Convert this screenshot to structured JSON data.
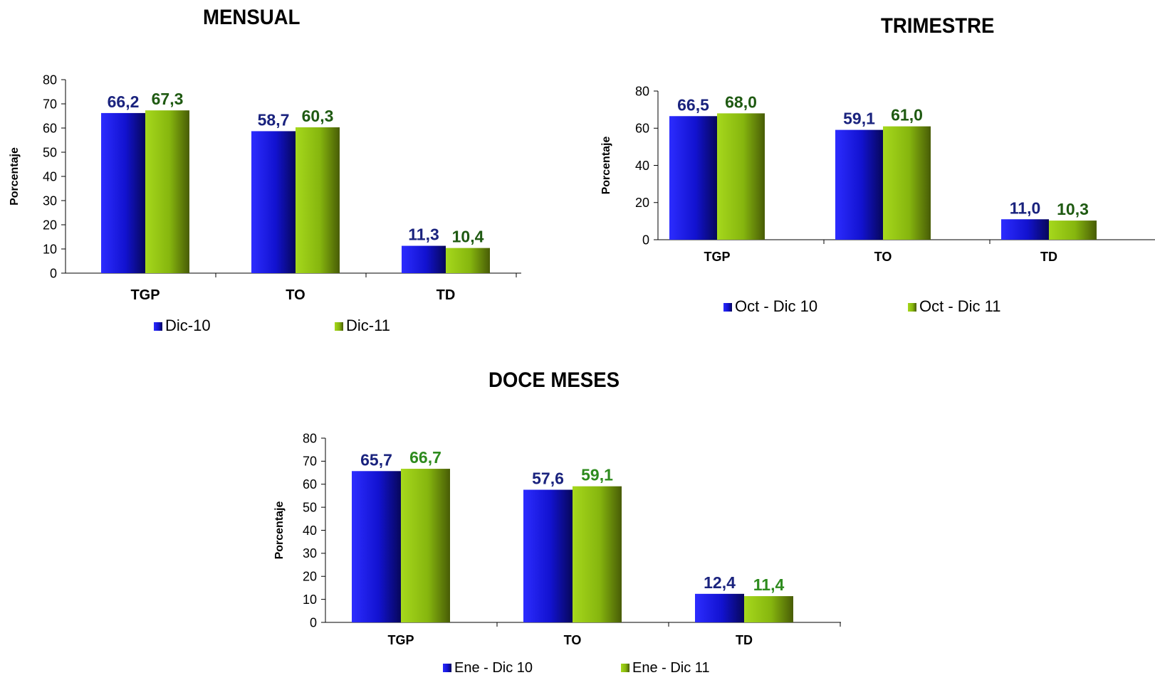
{
  "chart_data": [
    {
      "type": "bar",
      "title": "MENSUAL",
      "ylabel": "Porcentaje",
      "xlabel": "",
      "ylim": [
        0,
        80
      ],
      "yticks": [
        "0",
        "10",
        "20",
        "30",
        "40",
        "50",
        "60",
        "70",
        "80"
      ],
      "categories": [
        "TGP",
        "TO",
        "TD"
      ],
      "series": [
        {
          "name": "Dic-10",
          "values": [
            66.2,
            58.7,
            11.3
          ],
          "labels": [
            "66,2",
            "58,7",
            "11,3"
          ],
          "color": "#1515d6",
          "label_color": "#1a237e"
        },
        {
          "name": "Dic-11",
          "values": [
            67.3,
            60.3,
            10.4
          ],
          "labels": [
            "67,3",
            "60,3",
            "10,4"
          ],
          "color": "#8cbb0f",
          "label_color": "#1f5a12"
        }
      ],
      "legend": "bottom",
      "grid": false
    },
    {
      "type": "bar",
      "title": "TRIMESTRE",
      "ylabel": "Porcentaje",
      "xlabel": "",
      "ylim": [
        0,
        80
      ],
      "yticks": [
        "0",
        "20",
        "40",
        "60",
        "80"
      ],
      "categories": [
        "TGP",
        "TO",
        "TD"
      ],
      "series": [
        {
          "name": "Oct - Dic 10",
          "values": [
            66.5,
            59.1,
            11.0
          ],
          "labels": [
            "66,5",
            "59,1",
            "11,0"
          ],
          "color": "#1515d6",
          "label_color": "#1a237e"
        },
        {
          "name": "Oct - Dic 11",
          "values": [
            68.0,
            61.0,
            10.3
          ],
          "labels": [
            "68,0",
            "61,0",
            "10,3"
          ],
          "color": "#8cbb0f",
          "label_color": "#1f5a12"
        }
      ],
      "legend": "bottom",
      "grid": false
    },
    {
      "type": "bar",
      "title": "DOCE MESES",
      "ylabel": "Porcentaje",
      "xlabel": "",
      "ylim": [
        0,
        80
      ],
      "yticks": [
        "0",
        "10",
        "20",
        "30",
        "40",
        "50",
        "60",
        "70",
        "80"
      ],
      "categories": [
        "TGP",
        "TO",
        "TD"
      ],
      "series": [
        {
          "name": "Ene - Dic 10",
          "values": [
            65.7,
            57.6,
            12.4
          ],
          "labels": [
            "65,7",
            "57,6",
            "12,4"
          ],
          "color": "#1515d6",
          "label_color": "#1a237e"
        },
        {
          "name": "Ene - Dic 11",
          "values": [
            66.7,
            59.1,
            11.4
          ],
          "labels": [
            "66,7",
            "59,1",
            "11,4"
          ],
          "color": "#8cbb0f",
          "label_color": "#2e8b1e"
        }
      ],
      "legend": "bottom",
      "grid": false
    }
  ]
}
